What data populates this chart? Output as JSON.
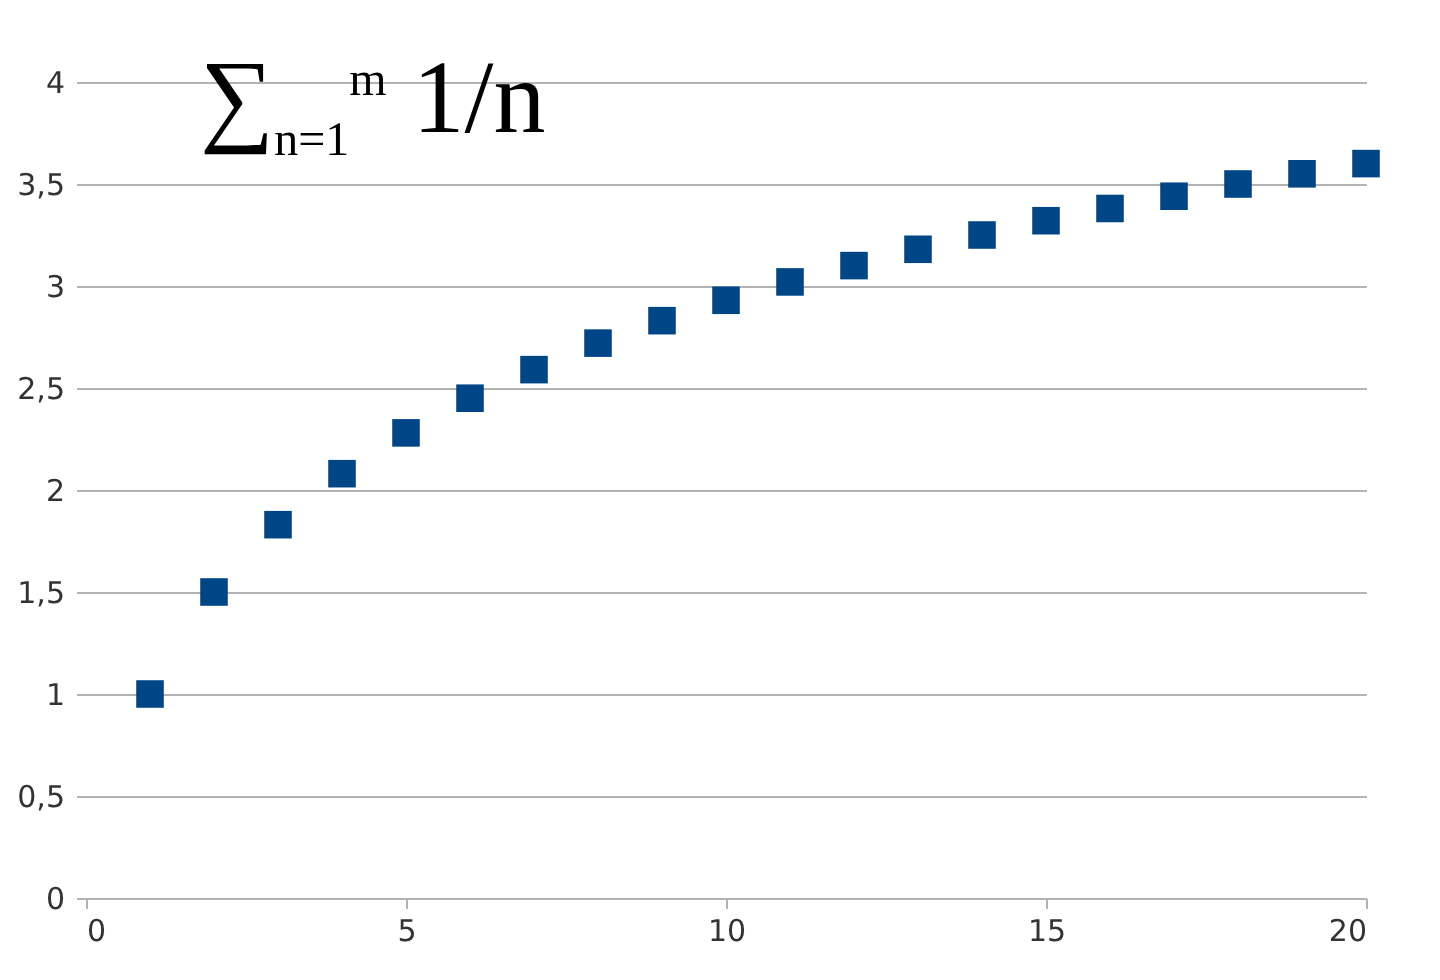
{
  "chart_data": {
    "type": "scatter",
    "annotations": [
      "∑$_{n=1}$$^{m}$ 1/n"
    ],
    "x": [
      1,
      2,
      3,
      4,
      5,
      6,
      7,
      8,
      9,
      10,
      11,
      12,
      13,
      14,
      15,
      16,
      17,
      18,
      19,
      20
    ],
    "series": [
      {
        "color": "#004586",
        "values": [
          1,
          1.5,
          1.83,
          2.08,
          2.28,
          2.45,
          2.59,
          2.72,
          2.83,
          2.93,
          3.02,
          3.1,
          3.18,
          3.25,
          3.32,
          3.38,
          3.44,
          3.5,
          3.55,
          3.6
        ]
      }
    ],
    "xlim": [
      0,
      20
    ],
    "xticks": [
      0,
      5,
      10,
      15,
      20
    ],
    "ylim": [
      0,
      4
    ],
    "yticks": [
      0,
      {
        "value": 0.5,
        "label": "0,5"
      },
      1,
      {
        "value": 1.5,
        "label": "1,5"
      },
      2,
      {
        "value": 2.5,
        "label": "2,5"
      },
      3,
      {
        "value": 3.5,
        "label": "3,5"
      },
      4
    ],
    "grid": "y",
    "marker": "square"
  }
}
